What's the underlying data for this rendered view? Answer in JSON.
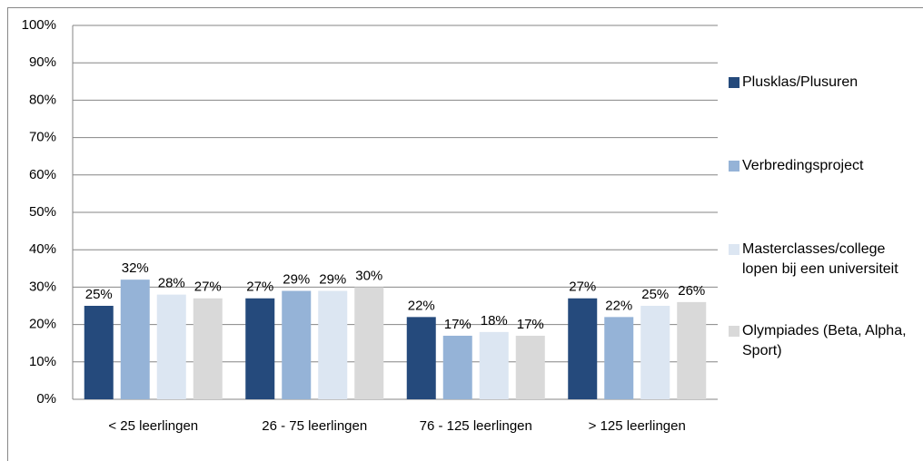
{
  "chart_data": {
    "type": "bar",
    "categories": [
      "< 25 leerlingen",
      "26 - 75 leerlingen",
      "76 - 125 leerlingen",
      "> 125 leerlingen"
    ],
    "series": [
      {
        "name": "Plusklas/Plusuren",
        "color": "#254a7c",
        "values": [
          25,
          27,
          22,
          27
        ],
        "value_labels": [
          "25%",
          "27%",
          "22%",
          "27%"
        ]
      },
      {
        "name": "Verbredingsproject",
        "color": "#95b3d7",
        "values": [
          32,
          29,
          17,
          22
        ],
        "value_labels": [
          "32%",
          "29%",
          "17%",
          "22%"
        ]
      },
      {
        "name": "Masterclasses/college lopen bij een universiteit",
        "color": "#dce6f2",
        "values": [
          28,
          29,
          18,
          25
        ],
        "value_labels": [
          "28%",
          "29%",
          "18%",
          "25%"
        ]
      },
      {
        "name": "Olympiades (Beta, Alpha, Sport)",
        "color": "#d9d9d9",
        "values": [
          27,
          30,
          17,
          26
        ],
        "value_labels": [
          "27%",
          "30%",
          "17%",
          "26%"
        ]
      }
    ],
    "ylim": [
      0,
      100
    ],
    "yticks": [
      {
        "value": 0,
        "label": "0%"
      },
      {
        "value": 10,
        "label": "10%"
      },
      {
        "value": 20,
        "label": "20%"
      },
      {
        "value": 30,
        "label": "30%"
      },
      {
        "value": 40,
        "label": "40%"
      },
      {
        "value": 50,
        "label": "50%"
      },
      {
        "value": 60,
        "label": "60%"
      },
      {
        "value": 70,
        "label": "70%"
      },
      {
        "value": 80,
        "label": "80%"
      },
      {
        "value": 90,
        "label": "90%"
      },
      {
        "value": 100,
        "label": "100%"
      }
    ],
    "grid": true,
    "legend": "right"
  }
}
